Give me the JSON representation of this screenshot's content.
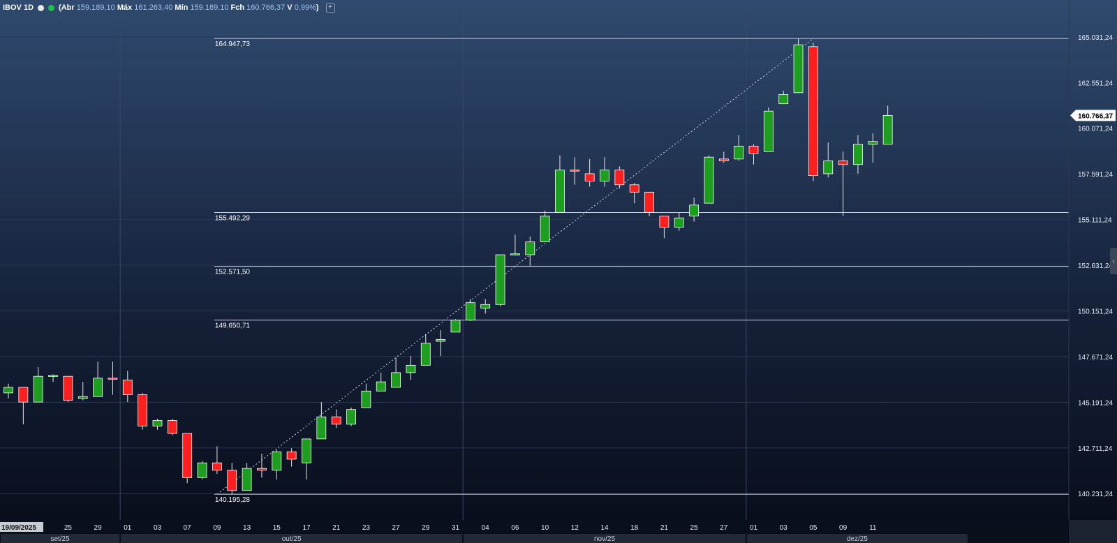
{
  "header": {
    "symbol": "IBOV 1D",
    "open_label": "(Abr",
    "open_value": "159.189,10",
    "high_label": "Máx",
    "high_value": "161.263,40",
    "low_label": "Mín",
    "low_value": "159.189,10",
    "close_label": "Fch",
    "close_value": "160.766,37",
    "var_label": "V",
    "var_value": "0,99%",
    "var_close": ")",
    "add_label": "+"
  },
  "colors": {
    "up": "#1e9e1e",
    "down": "#ff1f1f",
    "grid": "#2a3550",
    "hline": "#c9d4e6",
    "axis_text": "#e6ecf5"
  },
  "chart_data": {
    "type": "candlestick",
    "title": "IBOV 1D",
    "ylim": [
      138800,
      166200
    ],
    "y_ticks": [
      {
        "value": 165031.24,
        "label": "165.031,24"
      },
      {
        "value": 162551.24,
        "label": "162.551,24"
      },
      {
        "value": 160071.24,
        "label": "160.071,24"
      },
      {
        "value": 157591.24,
        "label": "157.591,24"
      },
      {
        "value": 155111.24,
        "label": "155.111,24"
      },
      {
        "value": 152631.24,
        "label": "152.631,24"
      },
      {
        "value": 150151.24,
        "label": "150.151,24"
      },
      {
        "value": 147671.24,
        "label": "147.671,24"
      },
      {
        "value": 145191.24,
        "label": "145.191,24"
      },
      {
        "value": 142711.24,
        "label": "142.711,24"
      },
      {
        "value": 140231.24,
        "label": "140.231,24"
      }
    ],
    "x_ticks": [
      {
        "i": 0,
        "label": "19/09/2025",
        "highlight": true
      },
      {
        "i": 4,
        "label": "25"
      },
      {
        "i": 6,
        "label": "29"
      },
      {
        "i": 8,
        "label": "01"
      },
      {
        "i": 10,
        "label": "03"
      },
      {
        "i": 12,
        "label": "07"
      },
      {
        "i": 14,
        "label": "09"
      },
      {
        "i": 16,
        "label": "13"
      },
      {
        "i": 18,
        "label": "15"
      },
      {
        "i": 20,
        "label": "17"
      },
      {
        "i": 22,
        "label": "21"
      },
      {
        "i": 24,
        "label": "23"
      },
      {
        "i": 26,
        "label": "27"
      },
      {
        "i": 28,
        "label": "29"
      },
      {
        "i": 30,
        "label": "31"
      },
      {
        "i": 32,
        "label": "04"
      },
      {
        "i": 34,
        "label": "06"
      },
      {
        "i": 36,
        "label": "10"
      },
      {
        "i": 38,
        "label": "12"
      },
      {
        "i": 40,
        "label": "14"
      },
      {
        "i": 42,
        "label": "18"
      },
      {
        "i": 44,
        "label": "21"
      },
      {
        "i": 46,
        "label": "25"
      },
      {
        "i": 48,
        "label": "27"
      },
      {
        "i": 50,
        "label": "01"
      },
      {
        "i": 52,
        "label": "03"
      },
      {
        "i": 54,
        "label": "05"
      },
      {
        "i": 56,
        "label": "09"
      },
      {
        "i": 58,
        "label": "11"
      }
    ],
    "months": [
      {
        "label": "set/25",
        "from": -0.6,
        "to": 7.5
      },
      {
        "label": "out/25",
        "from": 7.5,
        "to": 30.5
      },
      {
        "label": "nov/25",
        "from": 30.5,
        "to": 49.5
      },
      {
        "label": "dez/25",
        "from": 49.5,
        "to": 64.4
      }
    ],
    "horizontal_lines": [
      {
        "value": 164947.73,
        "label": "164.947,73",
        "start_i": 14
      },
      {
        "value": 155492.29,
        "label": "155.492,29",
        "start_i": 14
      },
      {
        "value": 152571.5,
        "label": "152.571,50",
        "start_i": 14
      },
      {
        "value": 149650.71,
        "label": "149.650,71",
        "start_i": 14
      },
      {
        "value": 140195.28,
        "label": "140.195,28",
        "start_i": 14
      }
    ],
    "trend_line": {
      "from": {
        "i": 14,
        "value": 140195.28
      },
      "to": {
        "i": 54,
        "value": 164947.73
      }
    },
    "last_price": {
      "value": 160766.37,
      "label": "160.766,37"
    },
    "candles": [
      {
        "o": 145700,
        "h": 146200,
        "l": 145400,
        "c": 146000
      },
      {
        "o": 146000,
        "h": 146000,
        "l": 144000,
        "c": 145200
      },
      {
        "o": 145200,
        "h": 147100,
        "l": 145200,
        "c": 146600
      },
      {
        "o": 146600,
        "h": 146700,
        "l": 146300,
        "c": 146650
      },
      {
        "o": 146600,
        "h": 146600,
        "l": 145200,
        "c": 145300
      },
      {
        "o": 145400,
        "h": 146300,
        "l": 145300,
        "c": 145500
      },
      {
        "o": 145500,
        "h": 147400,
        "l": 145500,
        "c": 146500
      },
      {
        "o": 146500,
        "h": 147400,
        "l": 145600,
        "c": 146450
      },
      {
        "o": 146400,
        "h": 146900,
        "l": 145200,
        "c": 145600
      },
      {
        "o": 145600,
        "h": 145700,
        "l": 143700,
        "c": 143900
      },
      {
        "o": 143900,
        "h": 144300,
        "l": 143700,
        "c": 144200
      },
      {
        "o": 144200,
        "h": 144300,
        "l": 143400,
        "c": 143500
      },
      {
        "o": 143500,
        "h": 143500,
        "l": 140800,
        "c": 141100
      },
      {
        "o": 141100,
        "h": 142000,
        "l": 141000,
        "c": 141900
      },
      {
        "o": 141900,
        "h": 142800,
        "l": 141300,
        "c": 141500
      },
      {
        "o": 141500,
        "h": 141900,
        "l": 140200,
        "c": 140400
      },
      {
        "o": 140400,
        "h": 141900,
        "l": 140400,
        "c": 141600
      },
      {
        "o": 141600,
        "h": 142400,
        "l": 141100,
        "c": 141500
      },
      {
        "o": 141500,
        "h": 142600,
        "l": 141000,
        "c": 142500
      },
      {
        "o": 142500,
        "h": 142700,
        "l": 141700,
        "c": 142100
      },
      {
        "o": 141900,
        "h": 143200,
        "l": 141000,
        "c": 143200
      },
      {
        "o": 143200,
        "h": 145200,
        "l": 143200,
        "c": 144400
      },
      {
        "o": 144400,
        "h": 144800,
        "l": 143800,
        "c": 144000
      },
      {
        "o": 144000,
        "h": 144900,
        "l": 143900,
        "c": 144800
      },
      {
        "o": 144900,
        "h": 146200,
        "l": 144900,
        "c": 145800
      },
      {
        "o": 145800,
        "h": 146800,
        "l": 145800,
        "c": 146300
      },
      {
        "o": 146000,
        "h": 147600,
        "l": 146000,
        "c": 146800
      },
      {
        "o": 146800,
        "h": 147700,
        "l": 146400,
        "c": 147200
      },
      {
        "o": 147200,
        "h": 148900,
        "l": 147200,
        "c": 148400
      },
      {
        "o": 148500,
        "h": 149100,
        "l": 147700,
        "c": 148600
      },
      {
        "o": 149000,
        "h": 149700,
        "l": 149000,
        "c": 149650
      },
      {
        "o": 149650,
        "h": 150800,
        "l": 149600,
        "c": 150600
      },
      {
        "o": 150300,
        "h": 150800,
        "l": 150000,
        "c": 150500
      },
      {
        "o": 150500,
        "h": 153200,
        "l": 150400,
        "c": 153200
      },
      {
        "o": 153200,
        "h": 154300,
        "l": 153200,
        "c": 153250
      },
      {
        "o": 153200,
        "h": 154200,
        "l": 152600,
        "c": 153900
      },
      {
        "o": 153900,
        "h": 155600,
        "l": 153900,
        "c": 155300
      },
      {
        "o": 155500,
        "h": 158600,
        "l": 155500,
        "c": 157800
      },
      {
        "o": 157800,
        "h": 158500,
        "l": 157000,
        "c": 157750
      },
      {
        "o": 157600,
        "h": 158400,
        "l": 156900,
        "c": 157200
      },
      {
        "o": 157200,
        "h": 158500,
        "l": 156900,
        "c": 157800
      },
      {
        "o": 157800,
        "h": 158000,
        "l": 156800,
        "c": 157000
      },
      {
        "o": 157000,
        "h": 157100,
        "l": 156000,
        "c": 156600
      },
      {
        "o": 156600,
        "h": 156600,
        "l": 155300,
        "c": 155500
      },
      {
        "o": 155300,
        "h": 155300,
        "l": 154100,
        "c": 154700
      },
      {
        "o": 154700,
        "h": 155500,
        "l": 154500,
        "c": 155200
      },
      {
        "o": 155300,
        "h": 156300,
        "l": 155000,
        "c": 155900
      },
      {
        "o": 156000,
        "h": 158600,
        "l": 156000,
        "c": 158500
      },
      {
        "o": 158400,
        "h": 158800,
        "l": 158200,
        "c": 158300
      },
      {
        "o": 158400,
        "h": 159700,
        "l": 158300,
        "c": 159100
      },
      {
        "o": 159100,
        "h": 159200,
        "l": 158100,
        "c": 158700
      },
      {
        "o": 158800,
        "h": 161200,
        "l": 158800,
        "c": 161000
      },
      {
        "o": 161400,
        "h": 162100,
        "l": 161400,
        "c": 161900
      },
      {
        "o": 162000,
        "h": 164950,
        "l": 162000,
        "c": 164600
      },
      {
        "o": 164500,
        "h": 164700,
        "l": 157200,
        "c": 157500
      },
      {
        "o": 157600,
        "h": 159300,
        "l": 157400,
        "c": 158300
      },
      {
        "o": 158300,
        "h": 158800,
        "l": 155300,
        "c": 158100
      },
      {
        "o": 158100,
        "h": 159700,
        "l": 157600,
        "c": 159200
      },
      {
        "o": 159200,
        "h": 159800,
        "l": 158200,
        "c": 159350
      },
      {
        "o": 159200,
        "h": 161300,
        "l": 159200,
        "c": 160766
      }
    ]
  }
}
